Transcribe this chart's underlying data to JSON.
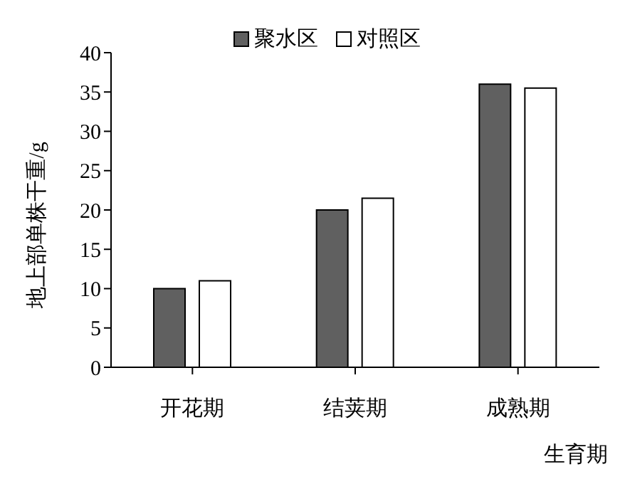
{
  "chart_data": {
    "type": "bar",
    "xlabel": "生育期",
    "ylabel": "地上部单株干重/g",
    "categories": [
      "开花期",
      "结荚期",
      "成熟期"
    ],
    "series": [
      {
        "name": "聚水区",
        "color": "#606060",
        "values": [
          10,
          20,
          36
        ]
      },
      {
        "name": "对照区",
        "color": "#ffffff",
        "values": [
          11,
          21.5,
          35.5
        ]
      }
    ],
    "ylim": [
      0,
      40
    ],
    "yticks": [
      0,
      5,
      10,
      15,
      20,
      25,
      30,
      35,
      40
    ],
    "grid": false,
    "legend": "top"
  }
}
